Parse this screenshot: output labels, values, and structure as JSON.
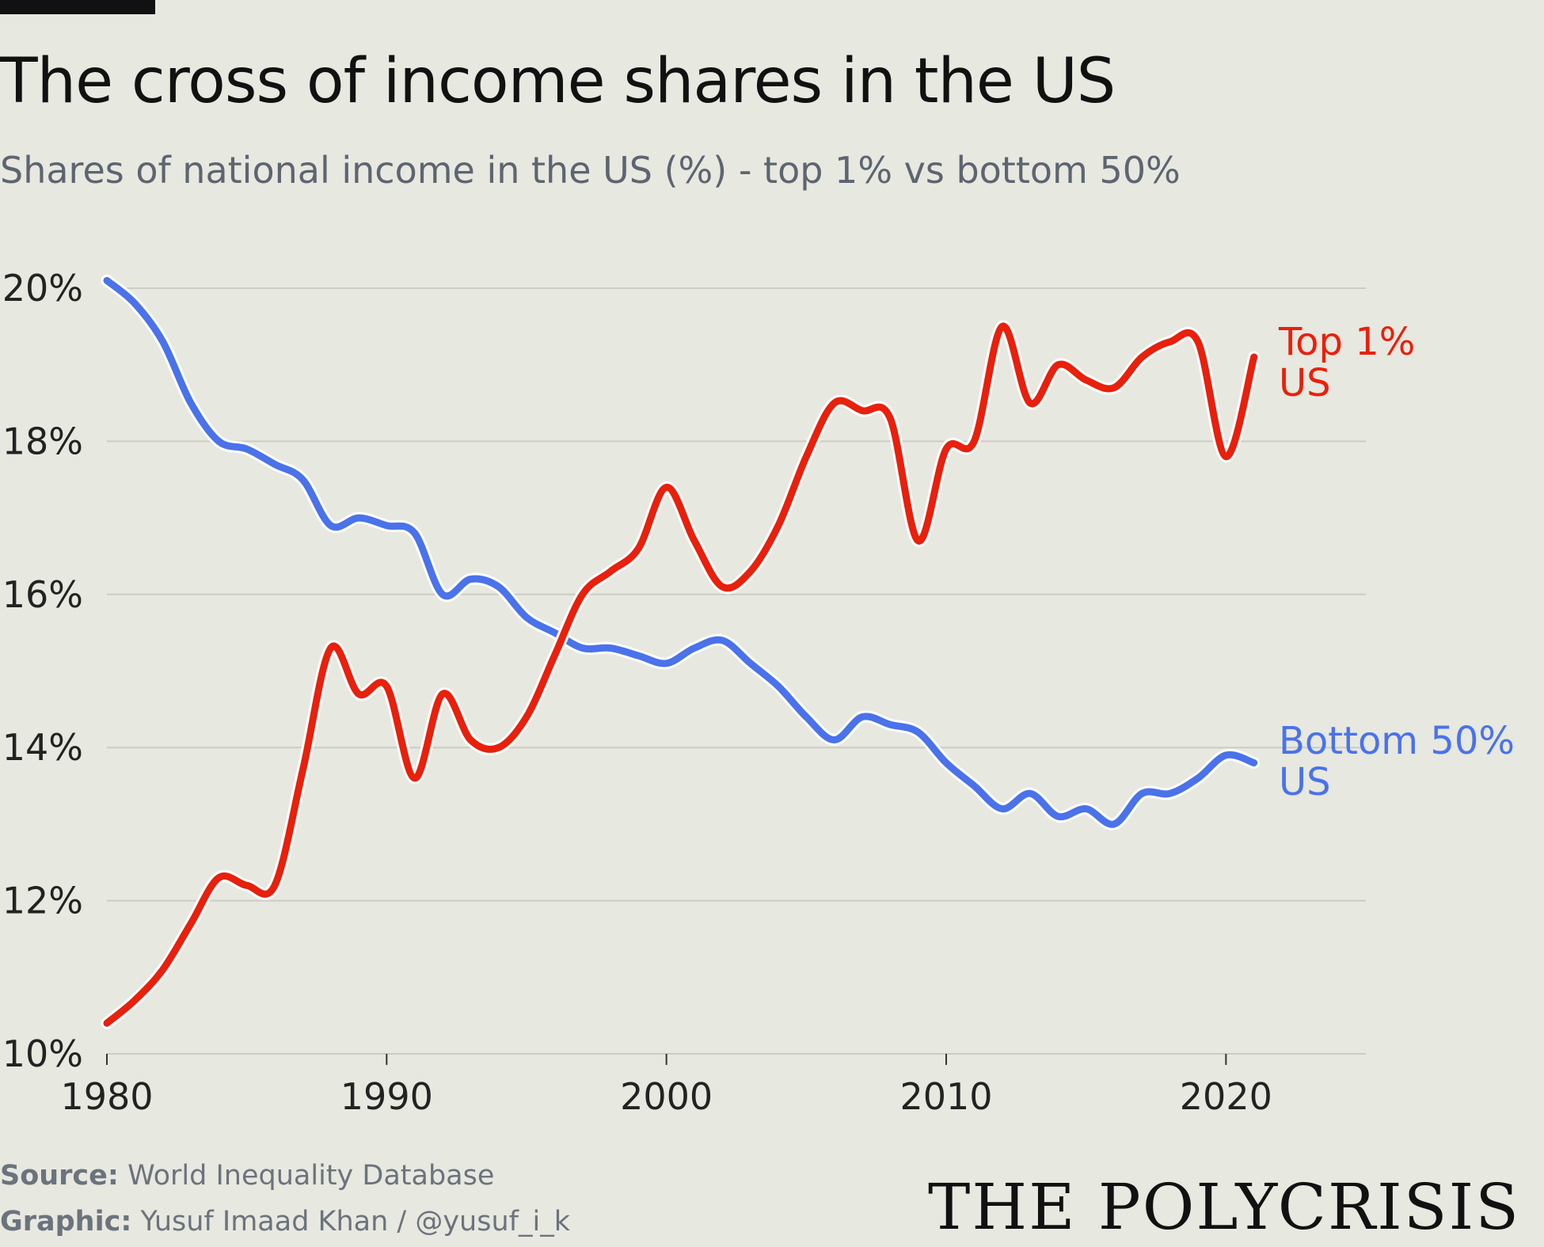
{
  "title": "The cross of income shares in the US",
  "subtitle": "Shares of national income in the US (%) - top 1% vs bottom 50%",
  "footer": {
    "source_label": "Source:",
    "source_value": "World Inequality Database",
    "graphic_label": "Graphic:",
    "graphic_value": "Yusuf Imaad Khan / @yusuf_i_k"
  },
  "brand": "THE POLYCRISIS",
  "chart_data": {
    "type": "line",
    "x": [
      1980,
      1981,
      1982,
      1983,
      1984,
      1985,
      1986,
      1987,
      1988,
      1989,
      1990,
      1991,
      1992,
      1993,
      1994,
      1995,
      1996,
      1997,
      1998,
      1999,
      2000,
      2001,
      2002,
      2003,
      2004,
      2005,
      2006,
      2007,
      2008,
      2009,
      2010,
      2011,
      2012,
      2013,
      2014,
      2015,
      2016,
      2017,
      2018,
      2019,
      2020,
      2021
    ],
    "series": [
      {
        "name": "Top 1%\nUS",
        "label_lines": [
          "Top 1%",
          "US"
        ],
        "color": "#e8200c",
        "values": [
          10.4,
          10.7,
          11.1,
          11.7,
          12.3,
          12.2,
          12.2,
          13.7,
          15.3,
          14.7,
          14.8,
          13.6,
          14.7,
          14.1,
          14.0,
          14.4,
          15.2,
          16.0,
          16.3,
          16.6,
          17.4,
          16.7,
          16.1,
          16.3,
          16.9,
          17.8,
          18.5,
          18.4,
          18.3,
          16.7,
          17.9,
          18.0,
          19.5,
          18.5,
          19.0,
          18.8,
          18.7,
          19.1,
          19.3,
          19.3,
          17.8,
          19.1
        ]
      },
      {
        "name": "Bottom 50%\nUS",
        "label_lines": [
          "Bottom 50%",
          "US"
        ],
        "color": "#4a72ea",
        "values": [
          20.1,
          19.8,
          19.3,
          18.5,
          18.0,
          17.9,
          17.7,
          17.5,
          16.9,
          17.0,
          16.9,
          16.8,
          16.0,
          16.2,
          16.1,
          15.7,
          15.5,
          15.3,
          15.3,
          15.2,
          15.1,
          15.3,
          15.4,
          15.1,
          14.8,
          14.4,
          14.1,
          14.4,
          14.3,
          14.2,
          13.8,
          13.5,
          13.2,
          13.4,
          13.1,
          13.2,
          13.0,
          13.4,
          13.4,
          13.6,
          13.9,
          13.8
        ]
      }
    ],
    "y_ticks": [
      "10%",
      "12%",
      "14%",
      "16%",
      "18%",
      "20%"
    ],
    "x_ticks": [
      "1980",
      "1990",
      "2000",
      "2010",
      "2020"
    ],
    "ylim": [
      10,
      20.2
    ],
    "xlim": [
      1980,
      2025
    ],
    "grid": true,
    "legend": "direct labels at line ends"
  }
}
